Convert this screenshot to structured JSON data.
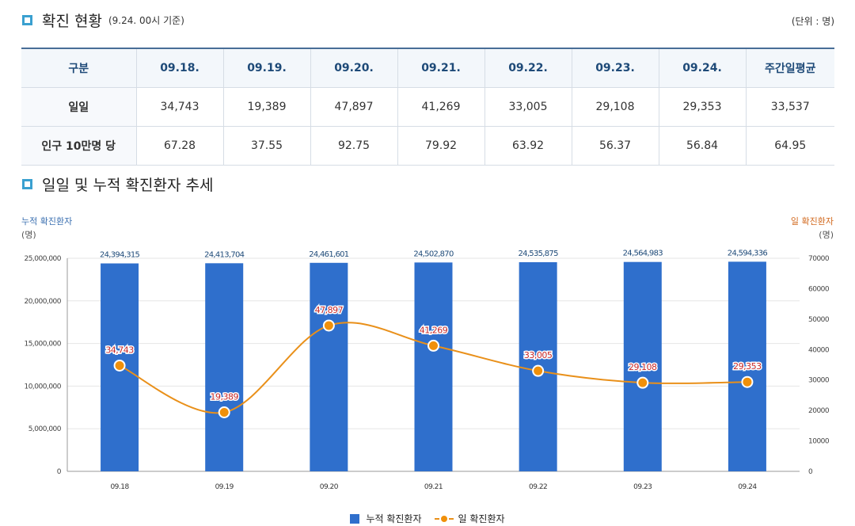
{
  "section1": {
    "title": "확진 현황",
    "subtitle": "(9.24. 00시 기준)",
    "unit": "(단위 : 명)"
  },
  "table": {
    "headers": [
      "구분",
      "09.18.",
      "09.19.",
      "09.20.",
      "09.21.",
      "09.22.",
      "09.23.",
      "09.24.",
      "주간일평균"
    ],
    "rows": [
      {
        "label": "일일",
        "values": [
          "34,743",
          "19,389",
          "47,897",
          "41,269",
          "33,005",
          "29,108",
          "29,353",
          "33,537"
        ]
      },
      {
        "label": "인구 10만명 당",
        "values": [
          "67.28",
          "37.55",
          "92.75",
          "79.92",
          "63.92",
          "56.37",
          "56.84",
          "64.95"
        ]
      }
    ]
  },
  "section2": {
    "title": "일일 및 누적 확진환자 추세"
  },
  "chart_data": {
    "type": "bar",
    "categories": [
      "09.18",
      "09.19",
      "09.20",
      "09.21",
      "09.22",
      "09.23",
      "09.24"
    ],
    "left_axis": {
      "label": "누적 확진환자",
      "unit": "(명)",
      "ylim": [
        0,
        25000000
      ],
      "ticks": [
        "0",
        "5,000,000",
        "10,000,000",
        "15,000,000",
        "20,000,000",
        "25,000,000"
      ]
    },
    "right_axis": {
      "label": "일 확진환자",
      "unit": "(명)",
      "ylim": [
        0,
        70000
      ],
      "ticks": [
        "0",
        "10000",
        "20000",
        "30000",
        "40000",
        "50000",
        "60000",
        "70000"
      ]
    },
    "series": [
      {
        "name": "누적 확진환자",
        "type": "bar",
        "axis": "left",
        "values": [
          24394315,
          24413704,
          24461601,
          24502870,
          24535875,
          24564983,
          24594336
        ],
        "labels": [
          "24,394,315",
          "24,413,704",
          "24,461,601",
          "24,502,870",
          "24,535,875",
          "24,564,983",
          "24,594,336"
        ],
        "color": "#2f6fcc"
      },
      {
        "name": "일 확진환자",
        "type": "line",
        "axis": "right",
        "values": [
          34743,
          19389,
          47897,
          41269,
          33005,
          29108,
          29353
        ],
        "labels": [
          "34,743",
          "19,389",
          "47,897",
          "41,269",
          "33,005",
          "29,108",
          "29,353"
        ],
        "color": "#e9901a"
      }
    ],
    "grid": true,
    "legend": "bottom-center"
  }
}
